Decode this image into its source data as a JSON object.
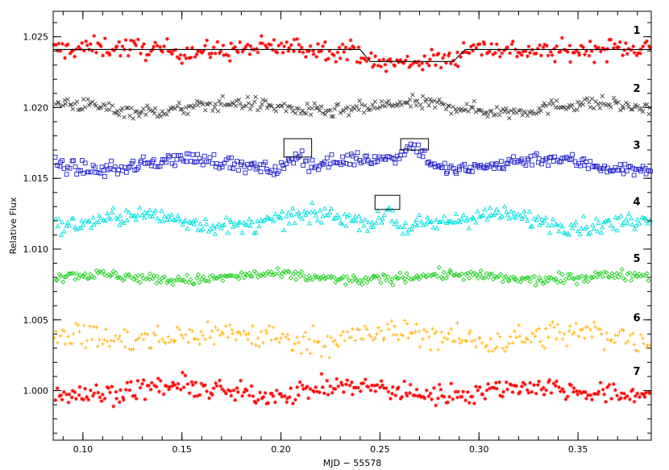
{
  "chart_data": {
    "type": "scatter",
    "title": "",
    "xlabel": "MJD − 55578",
    "ylabel": "Relative Flux",
    "xlim": [
      0.085,
      0.387
    ],
    "ylim": [
      0.9965,
      1.0268
    ],
    "x_ticks": [
      {
        "value": 0.1,
        "label": "0.10"
      },
      {
        "value": 0.15,
        "label": "0.15"
      },
      {
        "value": 0.2,
        "label": "0.20"
      },
      {
        "value": 0.25,
        "label": "0.25"
      },
      {
        "value": 0.3,
        "label": "0.30"
      },
      {
        "value": 0.35,
        "label": "0.35"
      }
    ],
    "y_ticks": [
      {
        "value": 1.0,
        "label": "1.000"
      },
      {
        "value": 1.005,
        "label": "1.005"
      },
      {
        "value": 1.01,
        "label": "1.010"
      },
      {
        "value": 1.015,
        "label": "1.015"
      },
      {
        "value": 1.02,
        "label": "1.020"
      },
      {
        "value": 1.025,
        "label": "1.025"
      }
    ],
    "grid": false,
    "legend": "none",
    "series": [
      {
        "label": "1",
        "color": "#ff0000",
        "marker": "asterisk",
        "baseline": 1.0241,
        "scatter": 0.0006,
        "n": 340,
        "wave_amp": 0.0003
      },
      {
        "label": "2",
        "color": "#404040",
        "marker": "cross",
        "baseline": 1.02,
        "scatter": 0.0004,
        "n": 340,
        "wave_amp": 0.0003
      },
      {
        "label": "3",
        "color": "#2020d0",
        "marker": "square",
        "baseline": 1.016,
        "scatter": 0.0004,
        "n": 340,
        "wave_amp": 0.0004
      },
      {
        "label": "4",
        "color": "#00e0e0",
        "marker": "triangle",
        "baseline": 1.012,
        "scatter": 0.0005,
        "n": 340,
        "wave_amp": 0.0004
      },
      {
        "label": "5",
        "color": "#20d020",
        "marker": "diamond",
        "baseline": 1.008,
        "scatter": 0.0003,
        "n": 340,
        "wave_amp": 0.0002
      },
      {
        "label": "6",
        "color": "#ffb000",
        "marker": "plus",
        "baseline": 1.0038,
        "scatter": 0.0008,
        "n": 300,
        "wave_amp": 0.0003
      },
      {
        "label": "7",
        "color": "#ff0000",
        "marker": "asterisk",
        "baseline": 1.0,
        "scatter": 0.0006,
        "n": 340,
        "wave_amp": 0.0003
      }
    ],
    "transit_model": {
      "series": "1",
      "color": "#000000",
      "points": [
        [
          0.085,
          1.0241
        ],
        [
          0.24,
          1.0241
        ],
        [
          0.245,
          1.02325
        ],
        [
          0.287,
          1.02325
        ],
        [
          0.293,
          1.0241
        ],
        [
          0.387,
          1.0241
        ]
      ]
    },
    "features": [
      {
        "series": "3",
        "x_center": 0.208,
        "width": 0.01,
        "amp": 0.001
      },
      {
        "series": "3",
        "x_center": 0.267,
        "width": 0.016,
        "amp": 0.0013
      },
      {
        "series": "4",
        "x_center": 0.254,
        "width": 0.006,
        "amp": 0.0012
      }
    ],
    "annotation_boxes": [
      {
        "series": "3",
        "x0": 0.2015,
        "x1": 0.2155,
        "y0": 1.0165,
        "y1": 1.0178
      },
      {
        "series": "3",
        "x0": 0.2605,
        "x1": 0.2745,
        "y0": 1.017,
        "y1": 1.0178
      },
      {
        "series": "4",
        "x0": 0.2475,
        "x1": 0.26,
        "y0": 1.0128,
        "y1": 1.0138
      }
    ]
  }
}
